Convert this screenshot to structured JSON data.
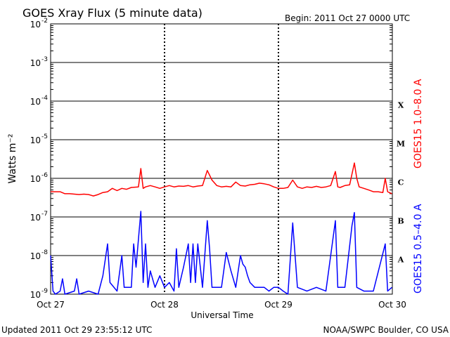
{
  "header": {
    "title": "GOES Xray Flux (5 minute data)",
    "begin": "Begin:  2011 Oct 27 0000 UTC"
  },
  "footer": {
    "updated": "Updated 2011 Oct 29 23:55:12 UTC",
    "credit": "NOAA/SWPC Boulder, CO USA"
  },
  "chart_data": {
    "type": "line",
    "title": "GOES Xray Flux (5 minute data)",
    "xlabel": "Universal Time",
    "ylabel": "Watts m⁻²",
    "yscale": "log",
    "ylim": [
      1e-09,
      0.01
    ],
    "xlim": [
      "2011-10-27 00:00",
      "2011-10-30 00:00"
    ],
    "x_tick_labels": [
      "Oct 27",
      "Oct 28",
      "Oct 29",
      "Oct 30"
    ],
    "y_tick_labels": [
      {
        "base": "10",
        "exp": "-2"
      },
      {
        "base": "10",
        "exp": "-3"
      },
      {
        "base": "10",
        "exp": "-4"
      },
      {
        "base": "10",
        "exp": "-5"
      },
      {
        "base": "10",
        "exp": "-6"
      },
      {
        "base": "10",
        "exp": "-7"
      },
      {
        "base": "10",
        "exp": "-8"
      },
      {
        "base": "10",
        "exp": "-9"
      }
    ],
    "flare_classes": [
      {
        "label": "X",
        "exp": -4
      },
      {
        "label": "M",
        "exp": -5
      },
      {
        "label": "C",
        "exp": -6
      },
      {
        "label": "B",
        "exp": -7
      },
      {
        "label": "A",
        "exp": -8
      }
    ],
    "grid": "horizontal lines at decades",
    "series": [
      {
        "name": "GOES15 1.0–8.0 A",
        "color": "#ff0000",
        "points": [
          [
            "2011-10-27 00:00",
            4.5e-07
          ],
          [
            "2011-10-27 01:00",
            4.5e-07
          ],
          [
            "2011-10-27 02:00",
            4.5e-07
          ],
          [
            "2011-10-27 03:00",
            4e-07
          ],
          [
            "2011-10-27 04:00",
            4e-07
          ],
          [
            "2011-10-27 05:00",
            3.9e-07
          ],
          [
            "2011-10-27 06:00",
            3.8e-07
          ],
          [
            "2011-10-27 07:00",
            3.9e-07
          ],
          [
            "2011-10-27 08:00",
            3.8e-07
          ],
          [
            "2011-10-27 09:00",
            3.5e-07
          ],
          [
            "2011-10-27 10:00",
            3.8e-07
          ],
          [
            "2011-10-27 11:00",
            4.3e-07
          ],
          [
            "2011-10-27 12:00",
            4.5e-07
          ],
          [
            "2011-10-27 13:00",
            5.5e-07
          ],
          [
            "2011-10-27 14:00",
            4.8e-07
          ],
          [
            "2011-10-27 15:00",
            5.5e-07
          ],
          [
            "2011-10-27 16:00",
            5.2e-07
          ],
          [
            "2011-10-27 17:00",
            5.8e-07
          ],
          [
            "2011-10-27 18:30",
            6e-07
          ],
          [
            "2011-10-27 19:00",
            1.8e-06
          ],
          [
            "2011-10-27 19:30",
            5.5e-07
          ],
          [
            "2011-10-27 20:00",
            6e-07
          ],
          [
            "2011-10-27 21:00",
            6.5e-07
          ],
          [
            "2011-10-27 22:00",
            6e-07
          ],
          [
            "2011-10-27 23:00",
            5.5e-07
          ],
          [
            "2011-10-28 00:00",
            6e-07
          ],
          [
            "2011-10-28 01:00",
            6.5e-07
          ],
          [
            "2011-10-28 02:00",
            6e-07
          ],
          [
            "2011-10-28 03:00",
            6.3e-07
          ],
          [
            "2011-10-28 04:00",
            6.2e-07
          ],
          [
            "2011-10-28 05:00",
            6.5e-07
          ],
          [
            "2011-10-28 06:00",
            6e-07
          ],
          [
            "2011-10-28 07:00",
            6.3e-07
          ],
          [
            "2011-10-28 08:00",
            6.5e-07
          ],
          [
            "2011-10-28 09:00",
            1.6e-06
          ],
          [
            "2011-10-28 10:00",
            9e-07
          ],
          [
            "2011-10-28 11:00",
            6.5e-07
          ],
          [
            "2011-10-28 12:00",
            6e-07
          ],
          [
            "2011-10-28 13:00",
            6.2e-07
          ],
          [
            "2011-10-28 14:00",
            6e-07
          ],
          [
            "2011-10-28 15:00",
            8e-07
          ],
          [
            "2011-10-28 16:00",
            6.5e-07
          ],
          [
            "2011-10-28 17:00",
            6.3e-07
          ],
          [
            "2011-10-28 18:00",
            6.8e-07
          ],
          [
            "2011-10-28 19:00",
            7e-07
          ],
          [
            "2011-10-28 20:00",
            7.5e-07
          ],
          [
            "2011-10-28 21:00",
            7.2e-07
          ],
          [
            "2011-10-28 22:00",
            6.8e-07
          ],
          [
            "2011-10-28 23:00",
            6e-07
          ],
          [
            "2011-10-29 00:00",
            5.5e-07
          ],
          [
            "2011-10-29 01:00",
            5.5e-07
          ],
          [
            "2011-10-29 02:00",
            5.8e-07
          ],
          [
            "2011-10-29 03:00",
            9e-07
          ],
          [
            "2011-10-29 04:00",
            6e-07
          ],
          [
            "2011-10-29 05:00",
            5.5e-07
          ],
          [
            "2011-10-29 06:00",
            6e-07
          ],
          [
            "2011-10-29 07:00",
            5.8e-07
          ],
          [
            "2011-10-29 08:00",
            6.2e-07
          ],
          [
            "2011-10-29 09:00",
            5.8e-07
          ],
          [
            "2011-10-29 10:00",
            6e-07
          ],
          [
            "2011-10-29 11:00",
            6.5e-07
          ],
          [
            "2011-10-29 12:00",
            1.5e-06
          ],
          [
            "2011-10-29 12:30",
            6e-07
          ],
          [
            "2011-10-29 13:00",
            5.8e-07
          ],
          [
            "2011-10-29 14:00",
            6.5e-07
          ],
          [
            "2011-10-29 15:00",
            6.8e-07
          ],
          [
            "2011-10-29 16:00",
            2.5e-06
          ],
          [
            "2011-10-29 16:30",
            1e-06
          ],
          [
            "2011-10-29 17:00",
            6e-07
          ],
          [
            "2011-10-29 18:00",
            5.5e-07
          ],
          [
            "2011-10-29 19:00",
            5e-07
          ],
          [
            "2011-10-29 20:00",
            4.5e-07
          ],
          [
            "2011-10-29 21:00",
            4.5e-07
          ],
          [
            "2011-10-29 22:00",
            4.3e-07
          ],
          [
            "2011-10-29 22:30",
            1e-06
          ],
          [
            "2011-10-29 23:00",
            4.5e-07
          ],
          [
            "2011-10-29 23:55",
            4e-07
          ]
        ]
      },
      {
        "name": "GOES15 0.5–4.0 A",
        "color": "#0000ff",
        "points": [
          [
            "2011-10-27 00:00",
            1e-08
          ],
          [
            "2011-10-27 00:30",
            1.2e-09
          ],
          [
            "2011-10-27 01:00",
            1e-09
          ],
          [
            "2011-10-27 02:00",
            1.2e-09
          ],
          [
            "2011-10-27 02:30",
            2.5e-09
          ],
          [
            "2011-10-27 03:00",
            1e-09
          ],
          [
            "2011-10-27 05:00",
            1.2e-09
          ],
          [
            "2011-10-27 05:30",
            2.5e-09
          ],
          [
            "2011-10-27 06:00",
            1e-09
          ],
          [
            "2011-10-27 08:00",
            1.2e-09
          ],
          [
            "2011-10-27 10:00",
            1e-09
          ],
          [
            "2011-10-27 11:00",
            3e-09
          ],
          [
            "2011-10-27 12:00",
            2e-08
          ],
          [
            "2011-10-27 12:30",
            2e-09
          ],
          [
            "2011-10-27 14:00",
            1.2e-09
          ],
          [
            "2011-10-27 15:00",
            1e-08
          ],
          [
            "2011-10-27 15:30",
            1.5e-09
          ],
          [
            "2011-10-27 17:00",
            1.5e-09
          ],
          [
            "2011-10-27 17:30",
            2e-08
          ],
          [
            "2011-10-27 18:00",
            5e-09
          ],
          [
            "2011-10-27 19:00",
            1.4e-07
          ],
          [
            "2011-10-27 19:30",
            2e-09
          ],
          [
            "2011-10-27 20:00",
            2e-08
          ],
          [
            "2011-10-27 20:30",
            1.5e-09
          ],
          [
            "2011-10-27 21:00",
            4e-09
          ],
          [
            "2011-10-27 22:00",
            1.5e-09
          ],
          [
            "2011-10-27 23:00",
            3e-09
          ],
          [
            "2011-10-28 00:00",
            1.5e-09
          ],
          [
            "2011-10-28 01:00",
            2e-09
          ],
          [
            "2011-10-28 02:00",
            1.2e-09
          ],
          [
            "2011-10-28 02:30",
            1.5e-08
          ],
          [
            "2011-10-28 03:00",
            1.5e-09
          ],
          [
            "2011-10-28 04:00",
            5e-09
          ],
          [
            "2011-10-28 05:00",
            2e-08
          ],
          [
            "2011-10-28 05:30",
            2e-09
          ],
          [
            "2011-10-28 06:00",
            2e-08
          ],
          [
            "2011-10-28 06:30",
            2e-09
          ],
          [
            "2011-10-28 07:00",
            2e-08
          ],
          [
            "2011-10-28 08:00",
            1.5e-09
          ],
          [
            "2011-10-28 09:00",
            8e-08
          ],
          [
            "2011-10-28 09:30",
            1.5e-08
          ],
          [
            "2011-10-28 10:00",
            1.5e-09
          ],
          [
            "2011-10-28 12:00",
            1.5e-09
          ],
          [
            "2011-10-28 13:00",
            1.2e-08
          ],
          [
            "2011-10-28 14:00",
            4e-09
          ],
          [
            "2011-10-28 15:00",
            1.5e-09
          ],
          [
            "2011-10-28 16:00",
            1e-08
          ],
          [
            "2011-10-28 16:30",
            6e-09
          ],
          [
            "2011-10-28 17:00",
            5e-09
          ],
          [
            "2011-10-28 17:30",
            3e-09
          ],
          [
            "2011-10-28 18:00",
            2e-09
          ],
          [
            "2011-10-28 19:00",
            1.5e-09
          ],
          [
            "2011-10-28 21:00",
            1.5e-09
          ],
          [
            "2011-10-28 22:00",
            1.2e-09
          ],
          [
            "2011-10-28 23:00",
            1.5e-09
          ],
          [
            "2011-10-29 00:00",
            1.5e-09
          ],
          [
            "2011-10-29 01:00",
            1.2e-09
          ],
          [
            "2011-10-29 02:00",
            1e-09
          ],
          [
            "2011-10-29 03:00",
            7e-08
          ],
          [
            "2011-10-29 04:00",
            1.5e-09
          ],
          [
            "2011-10-29 06:00",
            1.2e-09
          ],
          [
            "2011-10-29 08:00",
            1.5e-09
          ],
          [
            "2011-10-29 10:00",
            1.2e-09
          ],
          [
            "2011-10-29 12:00",
            8e-08
          ],
          [
            "2011-10-29 12:30",
            1.5e-09
          ],
          [
            "2011-10-29 14:00",
            1.5e-09
          ],
          [
            "2011-10-29 15:30",
            6e-08
          ],
          [
            "2011-10-29 16:00",
            1.3e-07
          ],
          [
            "2011-10-29 16:30",
            1.5e-09
          ],
          [
            "2011-10-29 18:00",
            1.2e-09
          ],
          [
            "2011-10-29 20:00",
            1.2e-09
          ],
          [
            "2011-10-29 22:30",
            2e-08
          ],
          [
            "2011-10-29 23:00",
            1.2e-09
          ],
          [
            "2011-10-29 23:55",
            1.5e-09
          ]
        ]
      }
    ]
  }
}
